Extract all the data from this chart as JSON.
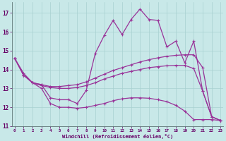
{
  "background_color": "#c8e8e8",
  "line_color": "#993399",
  "grid_color": "#a8d0d0",
  "xlabel": "Windchill (Refroidissement éolien,°C)",
  "xlabel_color": "#660066",
  "tick_color": "#660066",
  "xlim": [
    -0.3,
    23.3
  ],
  "ylim": [
    11.0,
    17.55
  ],
  "yticks": [
    11,
    12,
    13,
    14,
    15,
    16,
    17
  ],
  "xticks": [
    0,
    1,
    2,
    3,
    4,
    5,
    6,
    7,
    8,
    9,
    10,
    11,
    12,
    13,
    14,
    15,
    16,
    17,
    18,
    19,
    20,
    21,
    22,
    23
  ],
  "line1_x": [
    0,
    1,
    2,
    3,
    4,
    5,
    6,
    7,
    8,
    9,
    10,
    11,
    12,
    13,
    14,
    15,
    16,
    17,
    18,
    19,
    20,
    21,
    22,
    23
  ],
  "line1_y": [
    14.6,
    13.8,
    13.3,
    13.2,
    12.5,
    12.4,
    12.4,
    12.2,
    12.9,
    14.85,
    15.8,
    16.6,
    15.85,
    16.65,
    17.2,
    16.65,
    16.6,
    15.2,
    15.5,
    14.35,
    15.5,
    12.85,
    11.5,
    11.3
  ],
  "line2_x": [
    0,
    1,
    2,
    3,
    4,
    5,
    6,
    7,
    8,
    9,
    10,
    11,
    12,
    13,
    14,
    15,
    16,
    17,
    18,
    19,
    20,
    21,
    22,
    23
  ],
  "line2_y": [
    14.6,
    13.7,
    13.3,
    13.2,
    13.1,
    13.1,
    13.15,
    13.2,
    13.35,
    13.55,
    13.75,
    13.95,
    14.1,
    14.25,
    14.4,
    14.52,
    14.62,
    14.7,
    14.75,
    14.78,
    14.78,
    14.1,
    11.5,
    11.3
  ],
  "line3_x": [
    0,
    1,
    2,
    3,
    4,
    5,
    6,
    7,
    8,
    9,
    10,
    11,
    12,
    13,
    14,
    15,
    16,
    17,
    18,
    19,
    20,
    21,
    22,
    23
  ],
  "line3_y": [
    14.6,
    13.7,
    13.3,
    13.15,
    13.05,
    13.0,
    13.0,
    13.05,
    13.15,
    13.3,
    13.5,
    13.65,
    13.8,
    13.9,
    14.0,
    14.1,
    14.15,
    14.2,
    14.22,
    14.22,
    14.05,
    12.85,
    11.5,
    11.3
  ],
  "line4_x": [
    0,
    1,
    2,
    3,
    4,
    5,
    6,
    7,
    8,
    9,
    10,
    11,
    12,
    13,
    14,
    15,
    16,
    17,
    18,
    19,
    20,
    21,
    22,
    23
  ],
  "line4_y": [
    14.6,
    13.7,
    13.3,
    13.0,
    12.2,
    12.0,
    12.0,
    11.95,
    12.0,
    12.1,
    12.2,
    12.35,
    12.45,
    12.5,
    12.5,
    12.48,
    12.4,
    12.3,
    12.1,
    11.8,
    11.35,
    11.35,
    11.35,
    11.3
  ]
}
